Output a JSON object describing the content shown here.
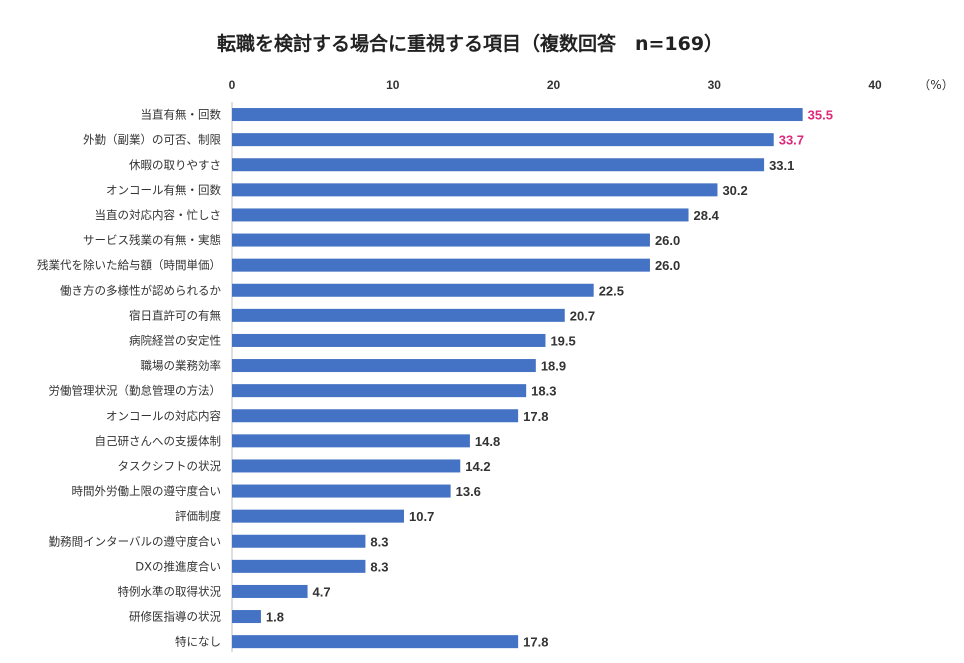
{
  "chart_data": {
    "type": "bar",
    "orientation": "horizontal",
    "title": "転職を検討する場合に重視する項目（複数回答　n=169）",
    "unit": "（%）",
    "xlim": [
      0,
      40
    ],
    "xticks": [
      "0",
      "10",
      "20",
      "30",
      "40"
    ],
    "grid": false,
    "bar_color": "#4472C4",
    "highlight_color": "#E0287A",
    "default_label_color": "#333333",
    "categories": [
      "当直有無・回数",
      "外勤（副業）の可否、制限",
      "休暇の取りやすさ",
      "オンコール有無・回数",
      "当直の対応内容・忙しさ",
      "サービス残業の有無・実態",
      "残業代を除いた給与額（時間単価）",
      "働き方の多様性が認められるか",
      "宿日直許可の有無",
      "病院経営の安定性",
      "職場の業務効率",
      "労働管理状況（勤怠管理の方法）",
      "オンコールの対応内容",
      "自己研さんへの支援体制",
      "タスクシフトの状況",
      "時間外労働上限の遵守度合い",
      "評価制度",
      "勤務間インターバルの遵守度合い",
      "DXの推進度合い",
      "特例水準の取得状況",
      "研修医指導の状況",
      "特になし"
    ],
    "values": [
      35.5,
      33.7,
      33.1,
      30.2,
      28.4,
      26.0,
      26.0,
      22.5,
      20.7,
      19.5,
      18.9,
      18.3,
      17.8,
      14.8,
      14.2,
      13.6,
      10.7,
      8.3,
      8.3,
      4.7,
      1.8,
      17.8
    ],
    "value_labels": [
      "35.5",
      "33.7",
      "33.1",
      "30.2",
      "28.4",
      "26.0",
      "26.0",
      "22.5",
      "20.7",
      "19.5",
      "18.9",
      "18.3",
      "17.8",
      "14.8",
      "14.2",
      "13.6",
      "10.7",
      "8.3",
      "8.3",
      "4.7",
      "1.8",
      "17.8"
    ],
    "highlighted": [
      true,
      true,
      false,
      false,
      false,
      false,
      false,
      false,
      false,
      false,
      false,
      false,
      false,
      false,
      false,
      false,
      false,
      false,
      false,
      false,
      false,
      false
    ]
  }
}
